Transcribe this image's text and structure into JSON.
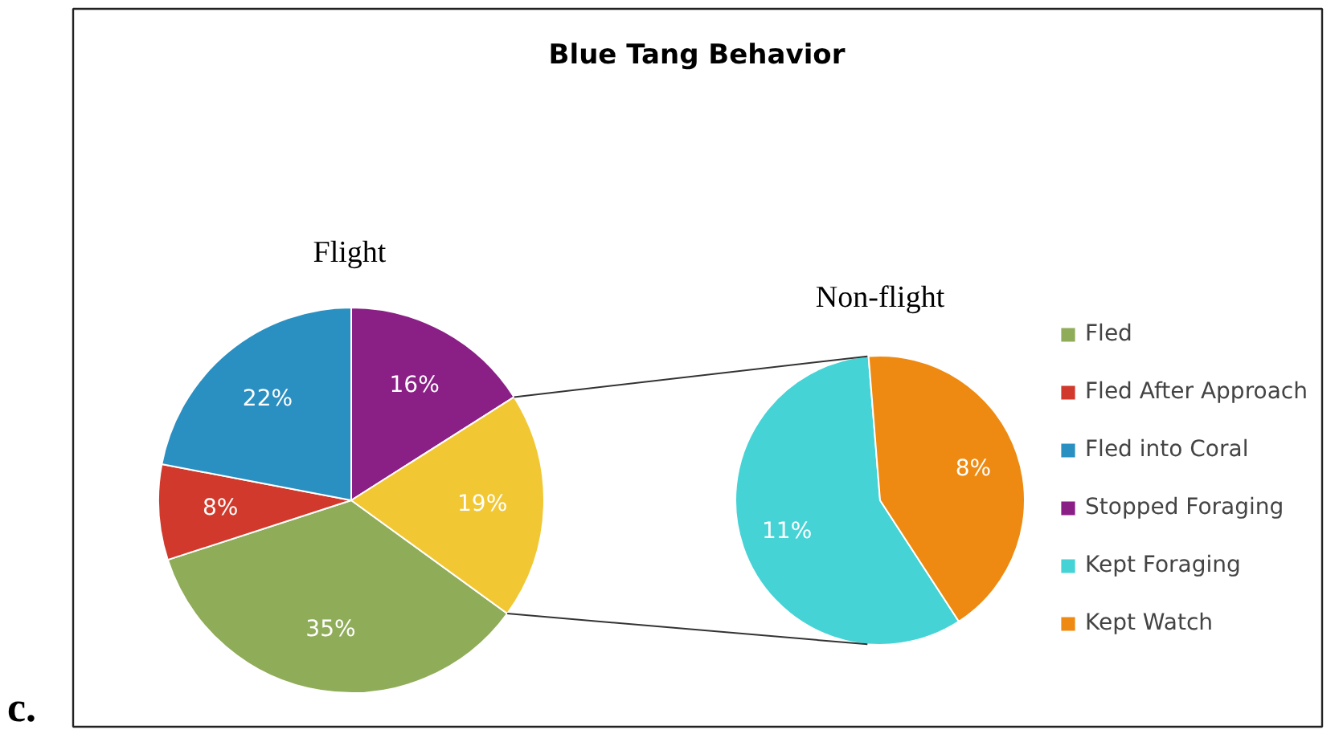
{
  "chart_data": [
    {
      "type": "pie",
      "title": "Blue Tang Behavior",
      "subtitle": "Flight",
      "categories": [
        "Fled",
        "Fled After Approach",
        "Fled into Coral",
        "Stopped Foraging",
        null
      ],
      "values": [
        35,
        8,
        22,
        16,
        19
      ],
      "colors": [
        "#8fac59",
        "#d0392b",
        "#2a8fc1",
        "#8a1f86",
        "#f2c734"
      ],
      "value_labels": [
        "35%",
        "8%",
        "22%",
        "16%",
        "19%"
      ],
      "legend": "right",
      "annotations": [
        "c."
      ]
    },
    {
      "type": "pie",
      "title": "Non-flight",
      "categories": [
        "Kept Foraging",
        "Kept Watch"
      ],
      "values": [
        11,
        8
      ],
      "colors": [
        "#45d3d6",
        "#ee8a12"
      ],
      "value_labels": [
        "11%",
        "8%"
      ],
      "legend": "right"
    }
  ]
}
